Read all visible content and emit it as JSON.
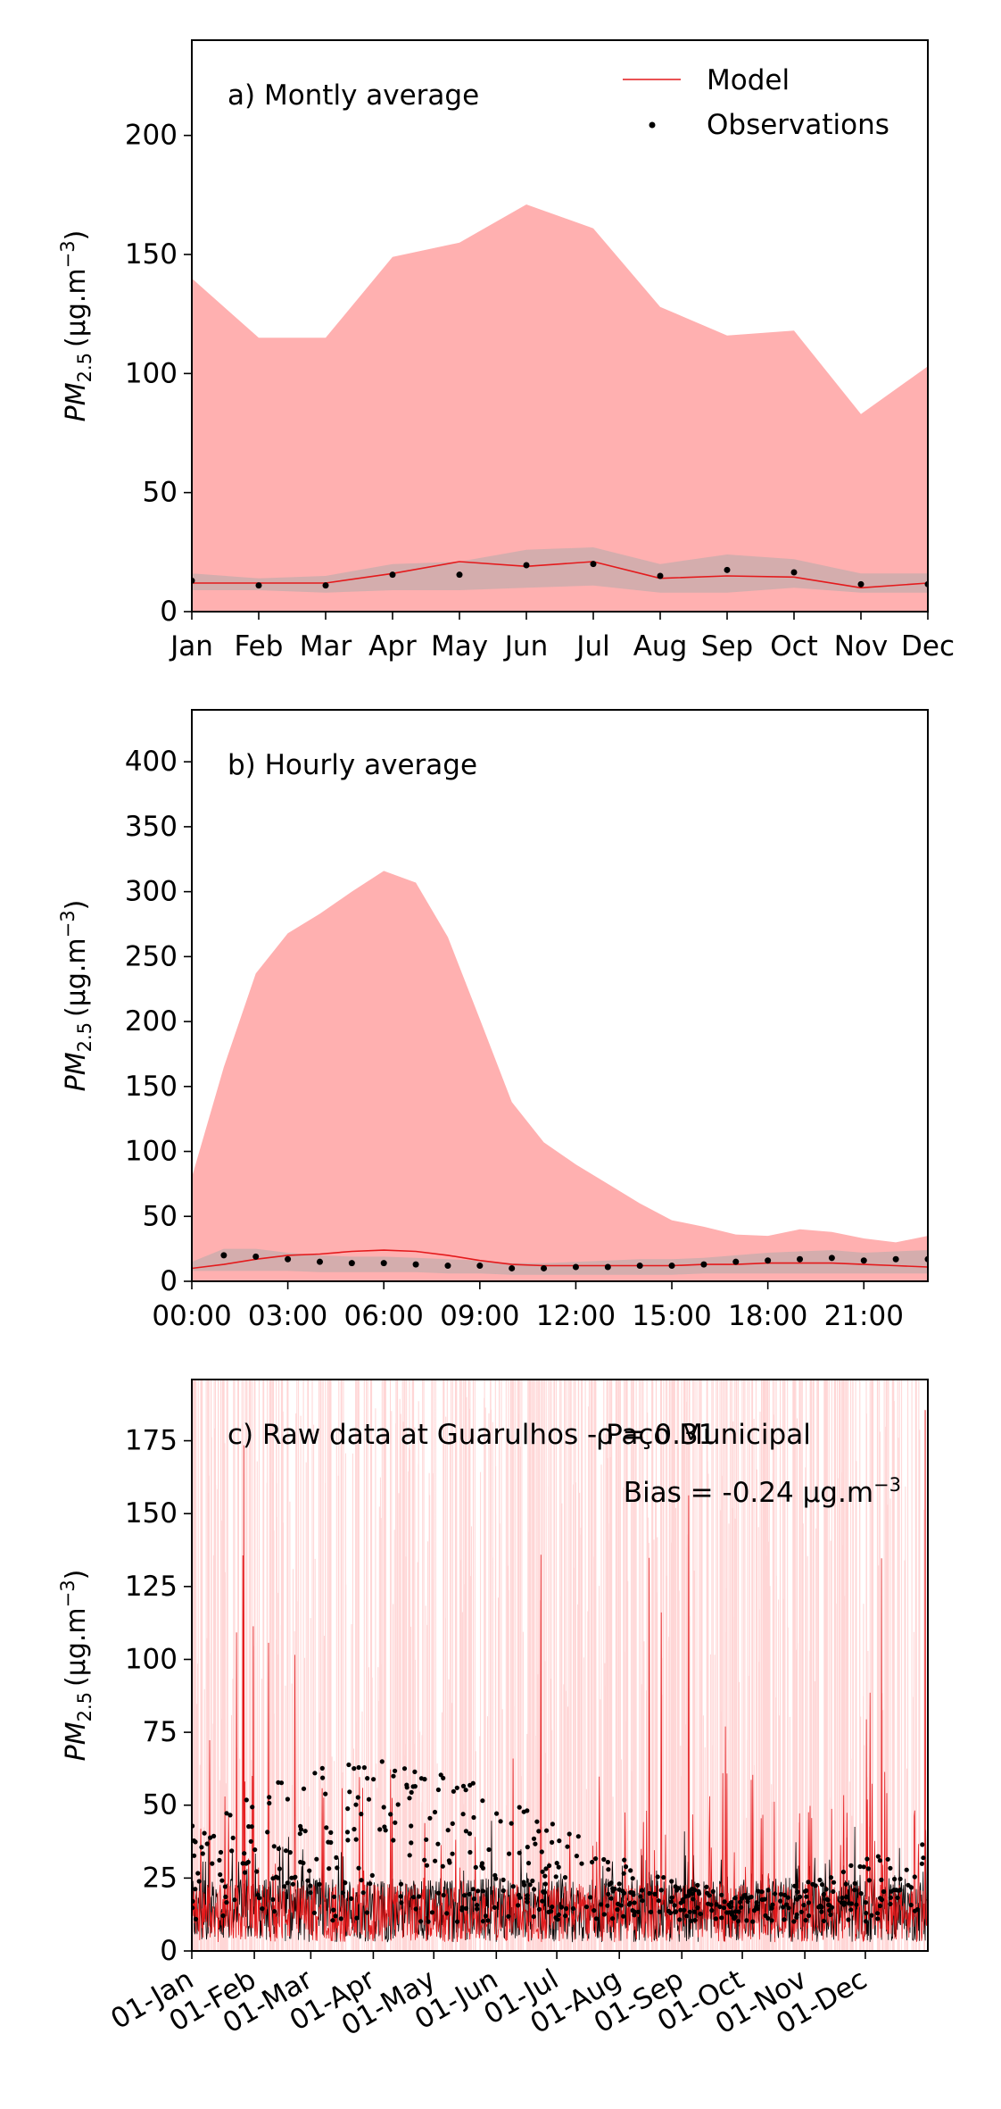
{
  "colors": {
    "model_line": "#e41a1c",
    "model_band": "#ffb0b0",
    "obs_band": "#a9a9a9",
    "obs_point": "#000000",
    "raw_model_fill": "#ffd6d6"
  },
  "legend": {
    "model": "Model",
    "observations": "Observations"
  },
  "chart_data": [
    {
      "type": "line",
      "panel_label": "a) Montly average",
      "ylabel_text": "PM",
      "ylabel_sub": "2.5",
      "ylabel_unit": "(μg.m",
      "ylabel_exp": "−3",
      "ylabel_close": ")",
      "categories": [
        "Jan",
        "Feb",
        "Mar",
        "Apr",
        "May",
        "Jun",
        "Jul",
        "Aug",
        "Sep",
        "Oct",
        "Nov",
        "Dec"
      ],
      "ylim": [
        0,
        240
      ],
      "yticks": [
        0,
        50,
        100,
        150,
        200
      ],
      "legend_position": "top-right",
      "grid": false,
      "series": [
        {
          "name": "Model",
          "values": [
            12,
            12,
            12,
            16,
            21,
            19,
            21,
            14,
            15,
            14.5,
            10,
            12
          ],
          "band_lower": [
            0,
            0,
            0,
            0,
            0,
            0,
            0,
            0,
            0,
            0,
            0,
            0
          ],
          "band_upper": [
            140,
            115,
            115,
            149,
            155,
            171,
            161,
            128,
            116,
            118,
            83,
            103
          ]
        },
        {
          "name": "Observations",
          "values": [
            13,
            11,
            11,
            15.5,
            15.5,
            19.5,
            20,
            15,
            17.5,
            16.5,
            11.5,
            11.5
          ],
          "band_lower": [
            9,
            9,
            8,
            9,
            9,
            10,
            11,
            8,
            8,
            10,
            8,
            8
          ],
          "band_upper": [
            16,
            14,
            15,
            20,
            21,
            26,
            27,
            20,
            24,
            22,
            16,
            16
          ]
        }
      ]
    },
    {
      "type": "line",
      "panel_label": "b) Hourly average",
      "ylabel_text": "PM",
      "ylabel_sub": "2.5",
      "ylabel_unit": "(μg.m",
      "ylabel_exp": "−3",
      "ylabel_close": ")",
      "x": [
        0,
        1,
        2,
        3,
        4,
        5,
        6,
        7,
        8,
        9,
        10,
        11,
        12,
        13,
        14,
        15,
        16,
        17,
        18,
        19,
        20,
        21,
        22,
        23
      ],
      "xtick_values": [
        0,
        3,
        6,
        9,
        12,
        15,
        18,
        21
      ],
      "xtick_labels": [
        "00:00",
        "03:00",
        "06:00",
        "09:00",
        "12:00",
        "15:00",
        "18:00",
        "21:00"
      ],
      "xlim": [
        0,
        23
      ],
      "ylim": [
        0,
        440
      ],
      "yticks": [
        0,
        50,
        100,
        150,
        200,
        250,
        300,
        350,
        400
      ],
      "grid": false,
      "series": [
        {
          "name": "Model",
          "values": [
            10,
            13,
            17,
            20,
            21,
            23,
            24,
            23,
            20,
            16,
            13,
            12,
            12,
            12,
            12,
            12,
            13,
            13,
            14,
            14,
            14,
            13,
            12,
            11
          ],
          "band_lower": [
            0,
            0,
            0,
            0,
            0,
            0,
            0,
            0,
            0,
            0,
            0,
            0,
            0,
            0,
            0,
            0,
            0,
            0,
            0,
            0,
            0,
            0,
            0,
            0
          ],
          "band_upper": [
            80,
            165,
            237,
            268,
            283,
            300,
            316,
            307,
            265,
            202,
            138,
            107,
            90,
            75,
            60,
            47,
            42,
            36,
            35,
            40,
            38,
            33,
            30,
            35
          ]
        },
        {
          "name": "Observations",
          "values": [
            null,
            20,
            19,
            17,
            15,
            14,
            14,
            13,
            12,
            12,
            10,
            10,
            11,
            11,
            12,
            12,
            13,
            15,
            16,
            17,
            18,
            16,
            17,
            17
          ],
          "band_lower": [
            8,
            8,
            8,
            8,
            7,
            7,
            7,
            7,
            6,
            6,
            5,
            5,
            5,
            5,
            5,
            5,
            6,
            6,
            6,
            6,
            6,
            6,
            6,
            6
          ],
          "band_upper": [
            15,
            25,
            25,
            22,
            20,
            19,
            19,
            18,
            17,
            16,
            14,
            14,
            15,
            16,
            17,
            17,
            18,
            20,
            22,
            23,
            24,
            22,
            23,
            24
          ]
        }
      ]
    },
    {
      "type": "line",
      "panel_label": "c) Raw data at Guarulhos - Paço Municipal",
      "stat_rho": "ρ = 0.31",
      "stat_bias": "Bias = -0.24 μg.m",
      "stat_bias_exp": "−3",
      "ylabel_text": "PM",
      "ylabel_sub": "2.5",
      "ylabel_unit": "(μg.m",
      "ylabel_exp": "−3",
      "ylabel_close": ")",
      "xtick_labels": [
        "01-Jan",
        "01-Feb",
        "01-Mar",
        "01-Apr",
        "01-May",
        "01-Jun",
        "01-Jul",
        "01-Aug",
        "01-Sep",
        "01-Oct",
        "01-Nov",
        "01-Dec"
      ],
      "xtick_day_of_year": [
        0,
        31,
        59,
        90,
        120,
        151,
        181,
        212,
        243,
        273,
        304,
        334
      ],
      "xlim_days": [
        0,
        365
      ],
      "ylim": [
        0,
        196
      ],
      "yticks": [
        0,
        25,
        50,
        75,
        100,
        125,
        150,
        175
      ],
      "grid": false,
      "series": [
        {
          "name": "Model",
          "values": []
        },
        {
          "name": "Observations",
          "values": []
        }
      ]
    }
  ]
}
